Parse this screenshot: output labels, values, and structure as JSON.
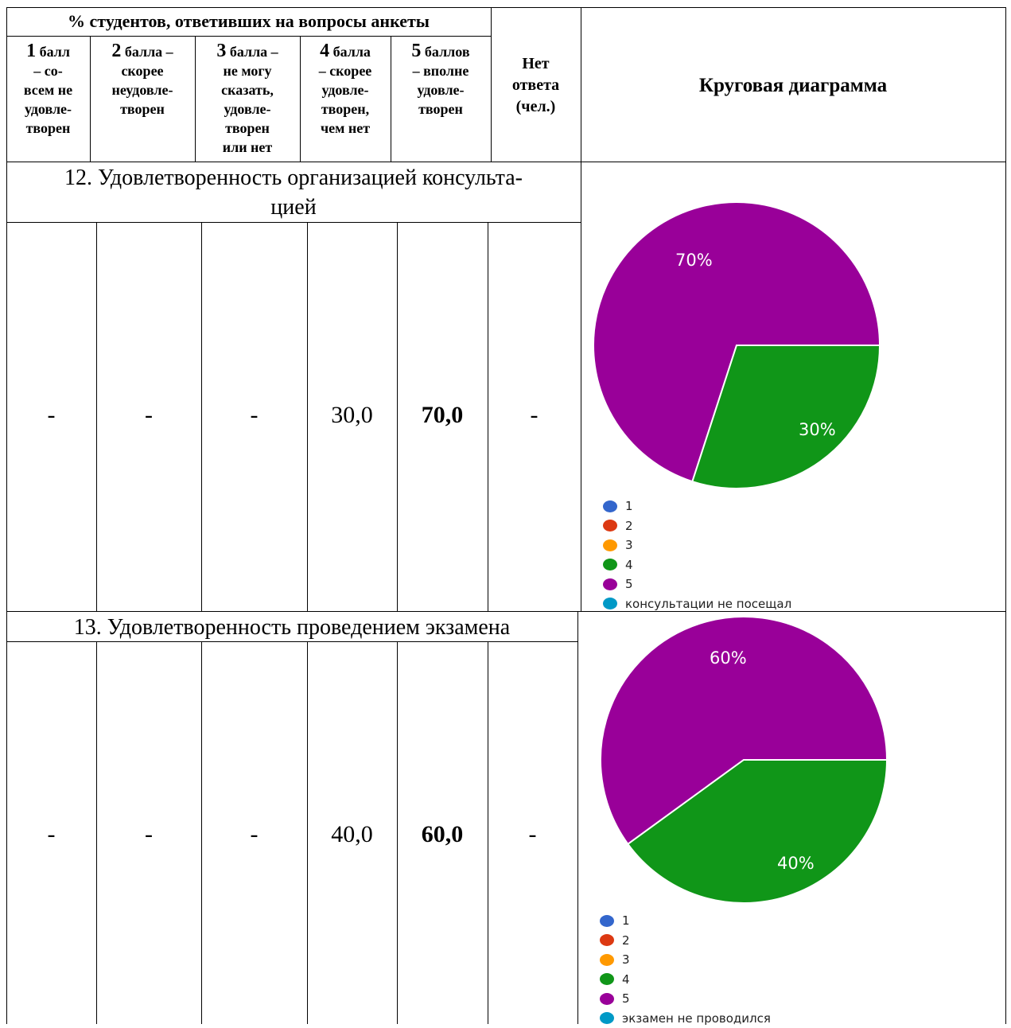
{
  "header": {
    "percent_title": "% студентов, ответивших на вопросы анкеты",
    "columns": [
      {
        "num": "1",
        "text": [
          "балл",
          "– со-",
          "всем не",
          "удовле-",
          "творен"
        ]
      },
      {
        "num": "2",
        "text": [
          "балла –",
          "скорее",
          "неудовле-",
          "творен"
        ]
      },
      {
        "num": "3",
        "text": [
          "балла –",
          "не могу",
          "сказать,",
          "удовле-",
          "творен",
          "или нет"
        ]
      },
      {
        "num": "4",
        "text": [
          "балла",
          "– скорее",
          "удовле-",
          "творен,",
          "чем нет"
        ]
      },
      {
        "num": "5",
        "text": [
          "баллов",
          "– вполне",
          "удовле-",
          "творен"
        ]
      }
    ],
    "no_answer": [
      "Нет",
      "ответа",
      "(чел.)"
    ],
    "pie_header": "Круговая диаграмма"
  },
  "sections": [
    {
      "title_lines": [
        "12. Удовлетворенность организацией консульта-",
        "цией"
      ],
      "values": [
        "-",
        "-",
        "-",
        "30,0",
        "70,0",
        "-"
      ],
      "chart_data": {
        "type": "pie",
        "slices": [
          {
            "label": "5",
            "value": 70,
            "text": "70%",
            "color": "#990099"
          },
          {
            "label": "4",
            "value": 30,
            "text": "30%",
            "color": "#109618"
          }
        ],
        "legend": [
          {
            "label": "1",
            "color": "#3366cc"
          },
          {
            "label": "2",
            "color": "#dc3912"
          },
          {
            "label": "3",
            "color": "#ff9900"
          },
          {
            "label": "4",
            "color": "#109618"
          },
          {
            "label": "5",
            "color": "#990099"
          },
          {
            "label": "консультации не посещал",
            "color": "#0099c6"
          }
        ],
        "legend_position": "bottom-left"
      }
    },
    {
      "title_lines": [
        "13. Удовлетворенность проведением экзамена"
      ],
      "values": [
        "-",
        "-",
        "-",
        "40,0",
        "60,0",
        "-"
      ],
      "chart_data": {
        "type": "pie",
        "slices": [
          {
            "label": "5",
            "value": 60,
            "text": "60%",
            "color": "#990099"
          },
          {
            "label": "4",
            "value": 40,
            "text": "40%",
            "color": "#109618"
          }
        ],
        "legend": [
          {
            "label": "1",
            "color": "#3366cc"
          },
          {
            "label": "2",
            "color": "#dc3912"
          },
          {
            "label": "3",
            "color": "#ff9900"
          },
          {
            "label": "4",
            "color": "#109618"
          },
          {
            "label": "5",
            "color": "#990099"
          },
          {
            "label": "экзамен не проводился",
            "color": "#0099c6"
          }
        ],
        "legend_position": "bottom-left"
      }
    }
  ]
}
